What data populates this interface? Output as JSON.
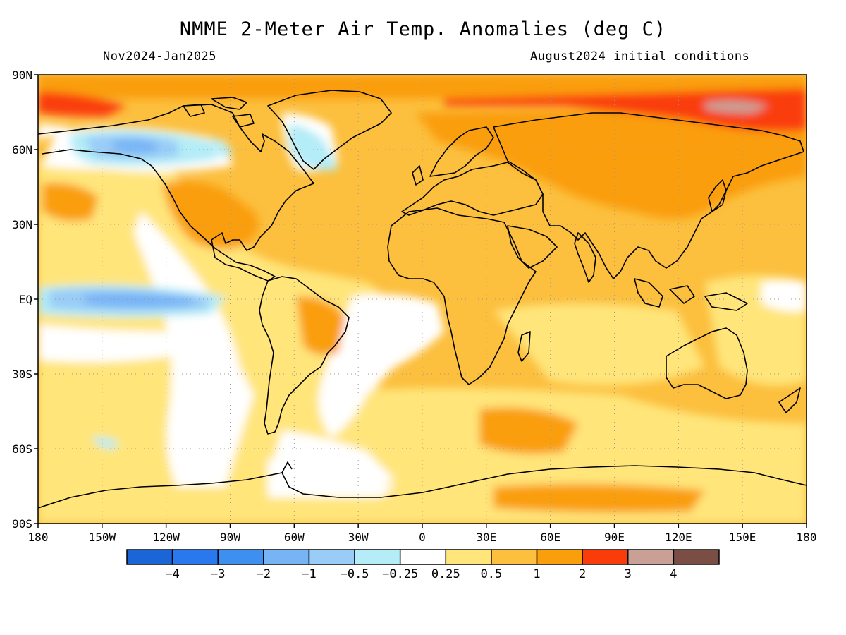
{
  "header": {
    "title": "NMME 2-Meter Air Temp. Anomalies (deg C)",
    "period": "Nov2024-Jan2025",
    "init": "August2024 initial conditions"
  },
  "axes": {
    "lat_labels": [
      "90N",
      "60N",
      "30N",
      "EQ",
      "30S",
      "60S",
      "90S"
    ],
    "lon_labels": [
      "180",
      "150W",
      "120W",
      "90W",
      "60W",
      "30W",
      "0",
      "30E",
      "60E",
      "90E",
      "120E",
      "150E",
      "180"
    ]
  },
  "colorbar": {
    "colors": [
      "#1a66d6",
      "#2a78ee",
      "#3d8ff0",
      "#77b4f5",
      "#99ccf7",
      "#b4ecf7",
      "#ffffff",
      "#ffe57a",
      "#fcbf3e",
      "#fa9e0b",
      "#fa3c0a",
      "#c8a096",
      "#7a4e44"
    ],
    "labels": [
      "-4",
      "-3",
      "-2",
      "-1",
      "-0.5",
      "-0.25",
      "0.25",
      "0.5",
      "1",
      "2",
      "3",
      "4"
    ]
  },
  "map_colors": {
    "ocean_base": "#fcbf3e",
    "land_base": "#fcbf3e",
    "coast": "#000000",
    "grid": "#9a9a9a"
  }
}
